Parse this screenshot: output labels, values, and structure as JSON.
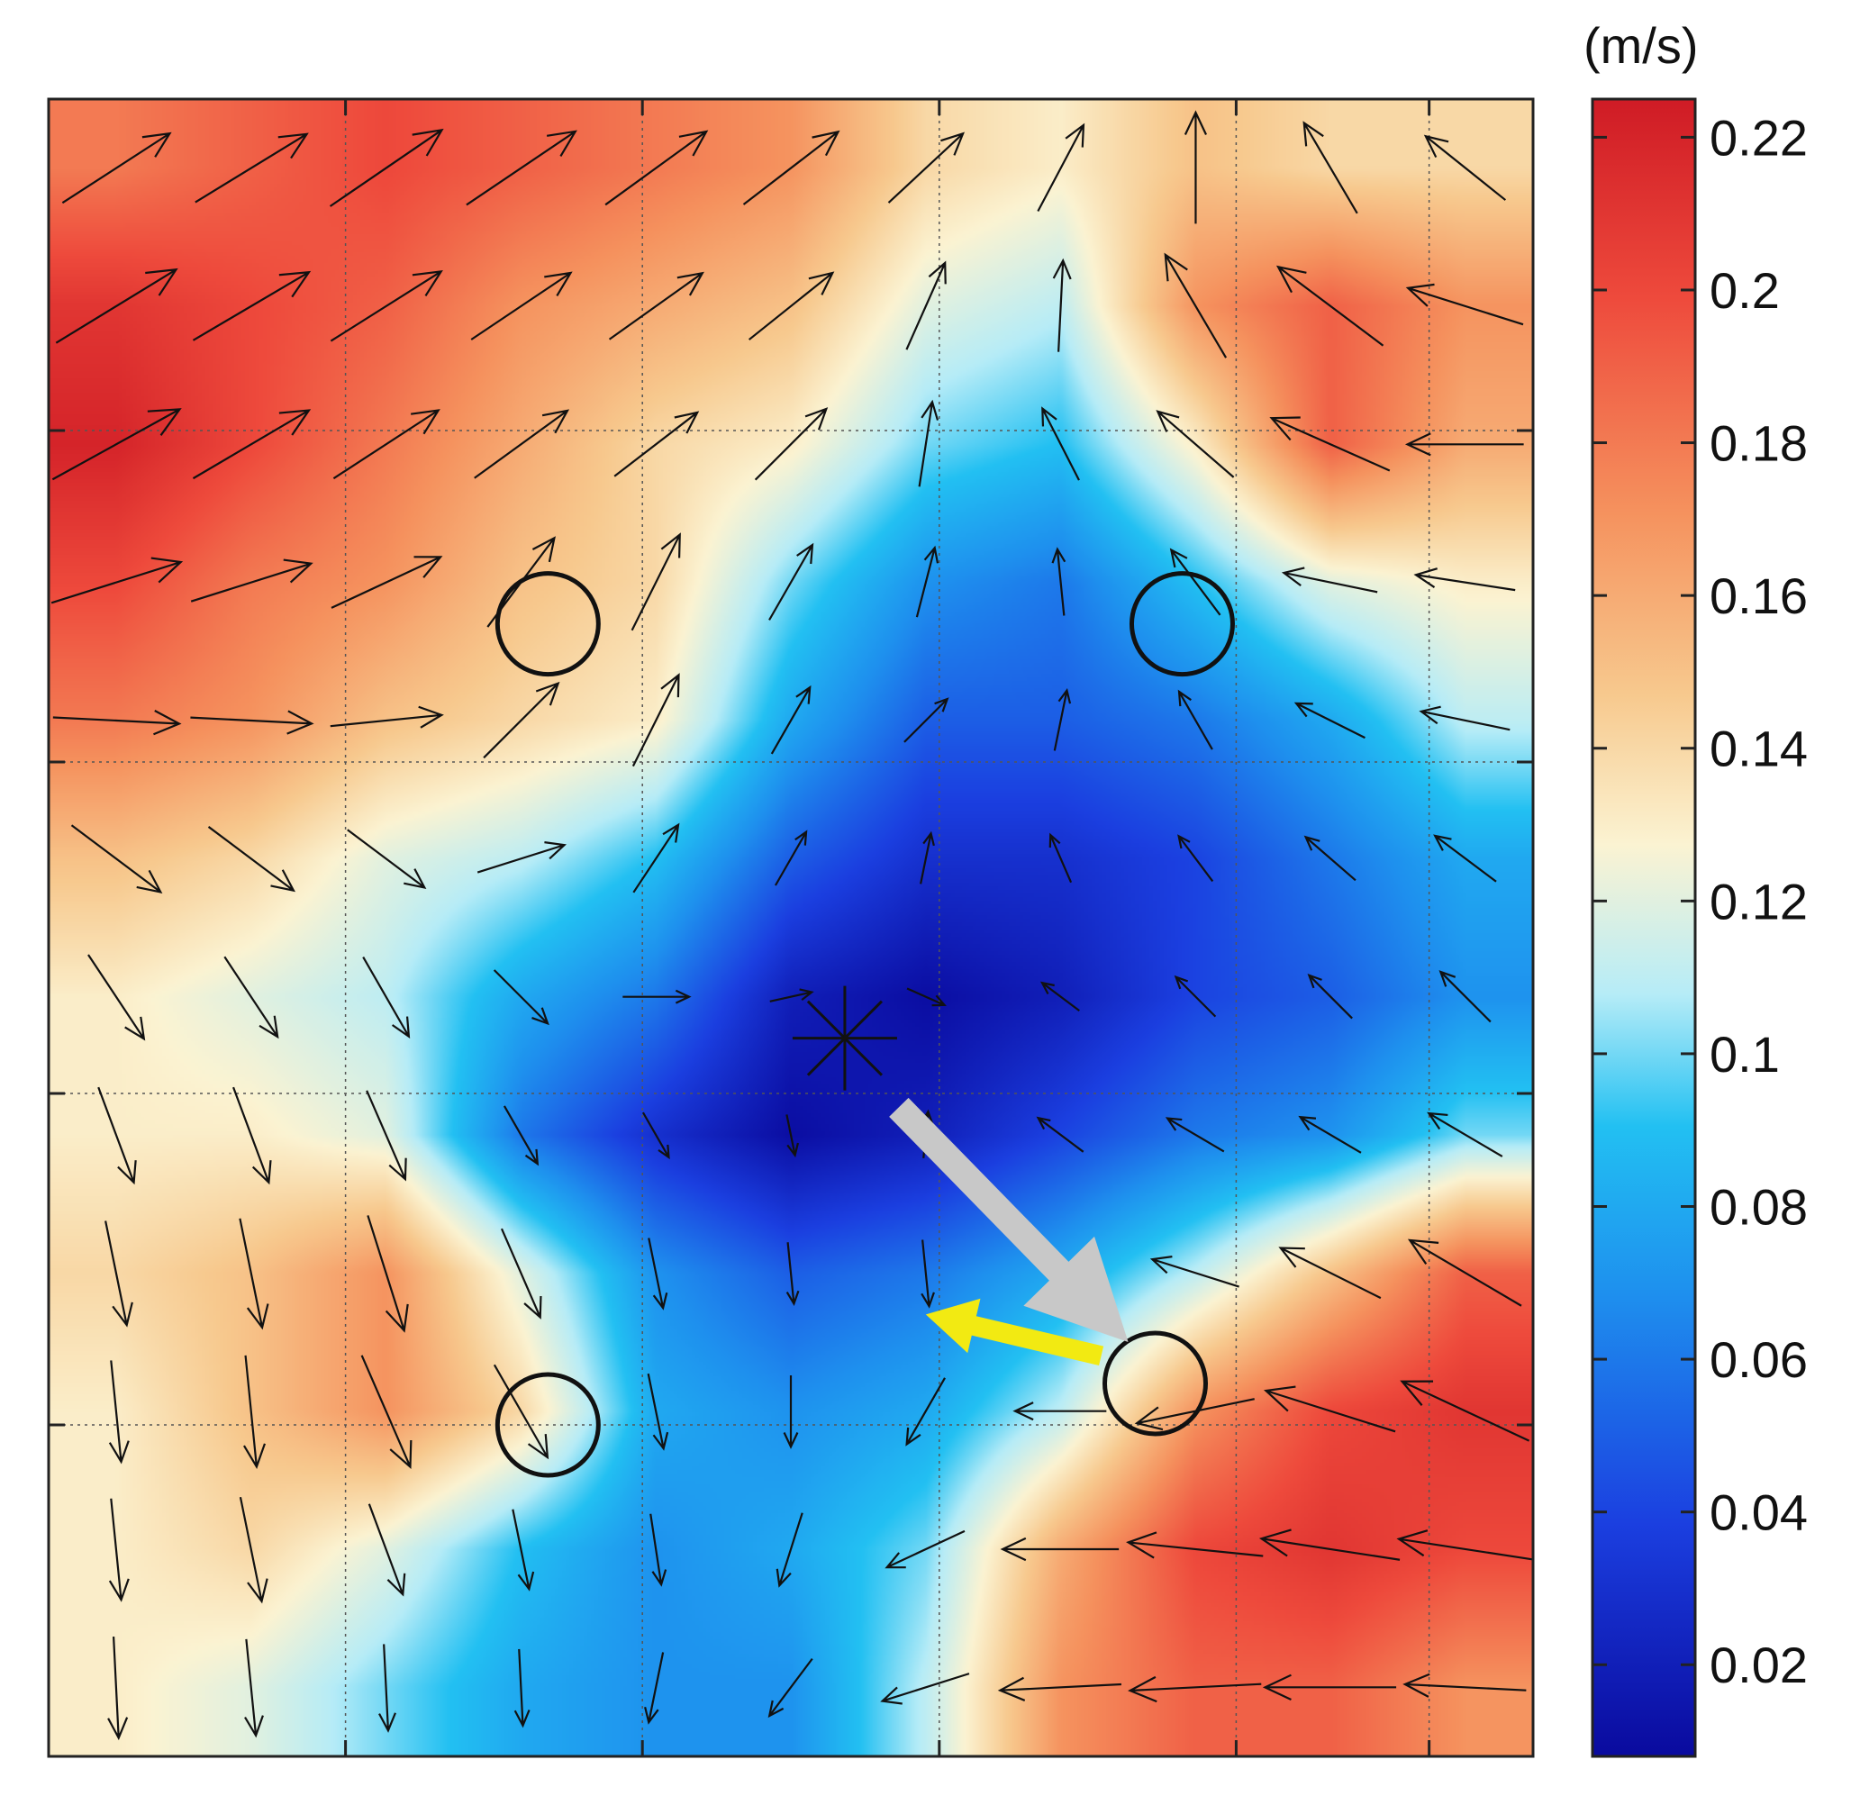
{
  "chart_data": {
    "type": "heatmap",
    "title": "",
    "xlabel": "",
    "ylabel": "",
    "grid": true,
    "grid_style": "dotted",
    "axis_tick_labels": "none",
    "colorbar": {
      "unit": "(m/s)",
      "ticks": [
        "0.22",
        "0.2",
        "0.18",
        "0.16",
        "0.14",
        "0.12",
        "0.1",
        "0.08",
        "0.06",
        "0.04",
        "0.02"
      ],
      "tick_values": [
        0.22,
        0.2,
        0.18,
        0.16,
        0.14,
        0.12,
        0.1,
        0.08,
        0.06,
        0.04,
        0.02
      ],
      "range": [
        0.008,
        0.225
      ],
      "colors": [
        "#0a0a9e",
        "#1b3fe0",
        "#1e90ee",
        "#22c0f2",
        "#b6ecf7",
        "#fbf3d2",
        "#f7c98e",
        "#f5925e",
        "#ee4a3c",
        "#cf1b25"
      ],
      "color_positions": [
        0.0,
        0.14,
        0.28,
        0.38,
        0.46,
        0.55,
        0.64,
        0.75,
        0.88,
        1.0
      ]
    },
    "field_grid_x": [
      0,
      1,
      2,
      3,
      4,
      5,
      6,
      7,
      8,
      9,
      10
    ],
    "field_grid_y": [
      0,
      1,
      2,
      3,
      4,
      5,
      6,
      7,
      8,
      9,
      10,
      11
    ],
    "speed_field": [
      [
        0.18,
        0.19,
        0.2,
        0.19,
        0.18,
        0.17,
        0.14,
        0.13,
        0.15,
        0.14,
        0.14
      ],
      [
        0.21,
        0.2,
        0.19,
        0.17,
        0.16,
        0.15,
        0.12,
        0.11,
        0.17,
        0.19,
        0.17
      ],
      [
        0.22,
        0.2,
        0.18,
        0.16,
        0.14,
        0.13,
        0.1,
        0.09,
        0.13,
        0.19,
        0.16
      ],
      [
        0.2,
        0.18,
        0.17,
        0.15,
        0.14,
        0.1,
        0.07,
        0.06,
        0.09,
        0.12,
        0.13
      ],
      [
        0.18,
        0.17,
        0.15,
        0.14,
        0.13,
        0.08,
        0.05,
        0.05,
        0.06,
        0.08,
        0.11
      ],
      [
        0.15,
        0.14,
        0.12,
        0.11,
        0.09,
        0.05,
        0.03,
        0.03,
        0.04,
        0.06,
        0.08
      ],
      [
        0.13,
        0.12,
        0.11,
        0.08,
        0.06,
        0.02,
        0.01,
        0.02,
        0.04,
        0.05,
        0.07
      ],
      [
        0.13,
        0.13,
        0.12,
        0.06,
        0.03,
        0.01,
        0.02,
        0.04,
        0.06,
        0.07,
        0.1
      ],
      [
        0.14,
        0.15,
        0.17,
        0.12,
        0.07,
        0.05,
        0.06,
        0.08,
        0.11,
        0.15,
        0.19
      ],
      [
        0.13,
        0.15,
        0.17,
        0.14,
        0.08,
        0.07,
        0.08,
        0.11,
        0.17,
        0.2,
        0.21
      ],
      [
        0.13,
        0.14,
        0.12,
        0.09,
        0.07,
        0.08,
        0.1,
        0.16,
        0.2,
        0.21,
        0.2
      ],
      [
        0.13,
        0.12,
        0.1,
        0.08,
        0.07,
        0.07,
        0.11,
        0.17,
        0.19,
        0.19,
        0.17
      ]
    ],
    "vectors": [
      {
        "x": 0,
        "y": 0,
        "u": 0.85,
        "v": 0.55
      },
      {
        "x": 1,
        "y": 0,
        "u": 0.85,
        "v": 0.52
      },
      {
        "x": 2,
        "y": 0,
        "u": 0.82,
        "v": 0.56
      },
      {
        "x": 3,
        "y": 0,
        "u": 0.83,
        "v": 0.56
      },
      {
        "x": 4,
        "y": 0,
        "u": 0.8,
        "v": 0.58
      },
      {
        "x": 5,
        "y": 0,
        "u": 0.78,
        "v": 0.6
      },
      {
        "x": 6,
        "y": 0,
        "u": 0.7,
        "v": 0.65
      },
      {
        "x": 7,
        "y": 0,
        "u": 0.45,
        "v": 0.85
      },
      {
        "x": 8,
        "y": 0,
        "u": 0.0,
        "v": 1.0
      },
      {
        "x": 9,
        "y": 0,
        "u": -0.5,
        "v": 0.85
      },
      {
        "x": 10,
        "y": 0,
        "u": -0.75,
        "v": 0.6
      },
      {
        "x": 0,
        "y": 1,
        "u": 0.85,
        "v": 0.52
      },
      {
        "x": 1,
        "y": 1,
        "u": 0.85,
        "v": 0.5
      },
      {
        "x": 2,
        "y": 1,
        "u": 0.84,
        "v": 0.53
      },
      {
        "x": 3,
        "y": 1,
        "u": 0.82,
        "v": 0.55
      },
      {
        "x": 4,
        "y": 1,
        "u": 0.8,
        "v": 0.57
      },
      {
        "x": 5,
        "y": 1,
        "u": 0.75,
        "v": 0.6
      },
      {
        "x": 6,
        "y": 1,
        "u": 0.4,
        "v": 0.9
      },
      {
        "x": 7,
        "y": 1,
        "u": 0.05,
        "v": 1.0
      },
      {
        "x": 8,
        "y": 1,
        "u": -0.5,
        "v": 0.85
      },
      {
        "x": 9,
        "y": 1,
        "u": -0.8,
        "v": 0.6
      },
      {
        "x": 10,
        "y": 1,
        "u": -0.95,
        "v": 0.3
      },
      {
        "x": 0,
        "y": 2,
        "u": 0.87,
        "v": 0.48
      },
      {
        "x": 1,
        "y": 2,
        "u": 0.85,
        "v": 0.5
      },
      {
        "x": 2,
        "y": 2,
        "u": 0.83,
        "v": 0.54
      },
      {
        "x": 3,
        "y": 2,
        "u": 0.8,
        "v": 0.58
      },
      {
        "x": 4,
        "y": 2,
        "u": 0.78,
        "v": 0.6
      },
      {
        "x": 5,
        "y": 2,
        "u": 0.7,
        "v": 0.7
      },
      {
        "x": 6,
        "y": 2,
        "u": 0.15,
        "v": 0.98
      },
      {
        "x": 7,
        "y": 2,
        "u": -0.45,
        "v": 0.88
      },
      {
        "x": 8,
        "y": 2,
        "u": -0.75,
        "v": 0.65
      },
      {
        "x": 9,
        "y": 2,
        "u": -0.9,
        "v": 0.4
      },
      {
        "x": 10,
        "y": 2,
        "u": -1.0,
        "v": 0.0
      },
      {
        "x": 0,
        "y": 3,
        "u": 0.95,
        "v": 0.3
      },
      {
        "x": 1,
        "y": 3,
        "u": 0.95,
        "v": 0.3
      },
      {
        "x": 2,
        "y": 3,
        "u": 0.9,
        "v": 0.42
      },
      {
        "x": 3,
        "y": 3,
        "u": 0.6,
        "v": 0.8
      },
      {
        "x": 4,
        "y": 3,
        "u": 0.45,
        "v": 0.9
      },
      {
        "x": 5,
        "y": 3,
        "u": 0.5,
        "v": 0.87
      },
      {
        "x": 6,
        "y": 3,
        "u": 0.25,
        "v": 0.97
      },
      {
        "x": 7,
        "y": 3,
        "u": -0.1,
        "v": 1.0
      },
      {
        "x": 8,
        "y": 3,
        "u": -0.6,
        "v": 0.8
      },
      {
        "x": 9,
        "y": 3,
        "u": -0.97,
        "v": 0.2
      },
      {
        "x": 10,
        "y": 3,
        "u": -0.98,
        "v": 0.15
      },
      {
        "x": 0,
        "y": 4,
        "u": 1.0,
        "v": -0.05
      },
      {
        "x": 1,
        "y": 4,
        "u": 1.0,
        "v": -0.05
      },
      {
        "x": 2,
        "y": 4,
        "u": 1.0,
        "v": 0.1
      },
      {
        "x": 3,
        "y": 4,
        "u": 0.7,
        "v": 0.7
      },
      {
        "x": 4,
        "y": 4,
        "u": 0.45,
        "v": 0.9
      },
      {
        "x": 5,
        "y": 4,
        "u": 0.5,
        "v": 0.87
      },
      {
        "x": 6,
        "y": 4,
        "u": 0.7,
        "v": 0.7
      },
      {
        "x": 7,
        "y": 4,
        "u": 0.2,
        "v": 0.98
      },
      {
        "x": 8,
        "y": 4,
        "u": -0.5,
        "v": 0.87
      },
      {
        "x": 9,
        "y": 4,
        "u": -0.9,
        "v": 0.45
      },
      {
        "x": 10,
        "y": 4,
        "u": -0.97,
        "v": 0.2
      },
      {
        "x": 0,
        "y": 5,
        "u": 0.8,
        "v": -0.6
      },
      {
        "x": 1,
        "y": 5,
        "u": 0.8,
        "v": -0.6
      },
      {
        "x": 2,
        "y": 5,
        "u": 0.8,
        "v": -0.6
      },
      {
        "x": 3,
        "y": 5,
        "u": 0.95,
        "v": 0.3
      },
      {
        "x": 4,
        "y": 5,
        "u": 0.55,
        "v": 0.83
      },
      {
        "x": 5,
        "y": 5,
        "u": 0.5,
        "v": 0.87
      },
      {
        "x": 6,
        "y": 5,
        "u": 0.2,
        "v": 0.98
      },
      {
        "x": 7,
        "y": 5,
        "u": -0.4,
        "v": 0.92
      },
      {
        "x": 8,
        "y": 5,
        "u": -0.6,
        "v": 0.8
      },
      {
        "x": 9,
        "y": 5,
        "u": -0.75,
        "v": 0.65
      },
      {
        "x": 10,
        "y": 5,
        "u": -0.8,
        "v": 0.6
      },
      {
        "x": 0,
        "y": 6,
        "u": 0.55,
        "v": -0.83
      },
      {
        "x": 1,
        "y": 6,
        "u": 0.55,
        "v": -0.83
      },
      {
        "x": 2,
        "y": 6,
        "u": 0.5,
        "v": -0.87
      },
      {
        "x": 3,
        "y": 6,
        "u": 0.7,
        "v": -0.7
      },
      {
        "x": 4,
        "y": 6,
        "u": 1.0,
        "v": 0.0
      },
      {
        "x": 5,
        "y": 6,
        "u": 0.9,
        "v": 0.2
      },
      {
        "x": 6,
        "y": 6,
        "u": 0.9,
        "v": -0.4
      },
      {
        "x": 7,
        "y": 6,
        "u": -0.8,
        "v": 0.6
      },
      {
        "x": 8,
        "y": 6,
        "u": -0.7,
        "v": 0.7
      },
      {
        "x": 9,
        "y": 6,
        "u": -0.7,
        "v": 0.7
      },
      {
        "x": 10,
        "y": 6,
        "u": -0.7,
        "v": 0.7
      },
      {
        "x": 0,
        "y": 7,
        "u": 0.35,
        "v": -0.94
      },
      {
        "x": 1,
        "y": 7,
        "u": 0.35,
        "v": -0.94
      },
      {
        "x": 2,
        "y": 7,
        "u": 0.4,
        "v": -0.92
      },
      {
        "x": 3,
        "y": 7,
        "u": 0.5,
        "v": -0.87
      },
      {
        "x": 4,
        "y": 7,
        "u": 0.5,
        "v": -0.87
      },
      {
        "x": 5,
        "y": 7,
        "u": 0.2,
        "v": -0.98
      },
      {
        "x": 6,
        "y": 7,
        "u": 0.1,
        "v": 1.0
      },
      {
        "x": 7,
        "y": 7,
        "u": -0.8,
        "v": 0.6
      },
      {
        "x": 8,
        "y": 7,
        "u": -0.85,
        "v": 0.5
      },
      {
        "x": 9,
        "y": 7,
        "u": -0.85,
        "v": 0.5
      },
      {
        "x": 10,
        "y": 7,
        "u": -0.85,
        "v": 0.5
      },
      {
        "x": 0,
        "y": 8,
        "u": 0.2,
        "v": -0.98
      },
      {
        "x": 1,
        "y": 8,
        "u": 0.2,
        "v": -0.98
      },
      {
        "x": 2,
        "y": 8,
        "u": 0.3,
        "v": -0.95
      },
      {
        "x": 3,
        "y": 8,
        "u": 0.4,
        "v": -0.92
      },
      {
        "x": 4,
        "y": 8,
        "u": 0.2,
        "v": -0.98
      },
      {
        "x": 5,
        "y": 8,
        "u": 0.1,
        "v": -1.0
      },
      {
        "x": 6,
        "y": 8,
        "u": 0.1,
        "v": -1.0
      },
      {
        "x": 7,
        "y": 8,
        "u": -0.8,
        "v": 0.6
      },
      {
        "x": 8,
        "y": 8,
        "u": -0.95,
        "v": 0.3
      },
      {
        "x": 9,
        "y": 8,
        "u": -0.9,
        "v": 0.45
      },
      {
        "x": 10,
        "y": 8,
        "u": -0.85,
        "v": 0.5
      },
      {
        "x": 0,
        "y": 9,
        "u": 0.1,
        "v": -1.0
      },
      {
        "x": 1,
        "y": 9,
        "u": 0.1,
        "v": -1.0
      },
      {
        "x": 2,
        "y": 9,
        "u": 0.4,
        "v": -0.92
      },
      {
        "x": 3,
        "y": 9,
        "u": 0.5,
        "v": -0.87
      },
      {
        "x": 4,
        "y": 9,
        "u": 0.2,
        "v": -0.98
      },
      {
        "x": 5,
        "y": 9,
        "u": 0.0,
        "v": -1.0
      },
      {
        "x": 6,
        "y": 9,
        "u": -0.5,
        "v": -0.87
      },
      {
        "x": 7,
        "y": 9,
        "u": -1.0,
        "v": 0.0
      },
      {
        "x": 8,
        "y": 9,
        "u": -0.97,
        "v": -0.2
      },
      {
        "x": 9,
        "y": 9,
        "u": -0.95,
        "v": 0.3
      },
      {
        "x": 10,
        "y": 9,
        "u": -0.9,
        "v": 0.42
      },
      {
        "x": 0,
        "y": 10,
        "u": 0.1,
        "v": -1.0
      },
      {
        "x": 1,
        "y": 10,
        "u": 0.2,
        "v": -0.98
      },
      {
        "x": 2,
        "y": 10,
        "u": 0.35,
        "v": -0.94
      },
      {
        "x": 3,
        "y": 10,
        "u": 0.2,
        "v": -0.98
      },
      {
        "x": 4,
        "y": 10,
        "u": 0.15,
        "v": -0.99
      },
      {
        "x": 5,
        "y": 10,
        "u": -0.3,
        "v": -0.95
      },
      {
        "x": 6,
        "y": 10,
        "u": -0.9,
        "v": -0.42
      },
      {
        "x": 7,
        "y": 10,
        "u": -1.0,
        "v": 0.0
      },
      {
        "x": 8,
        "y": 10,
        "u": -0.99,
        "v": 0.1
      },
      {
        "x": 9,
        "y": 10,
        "u": -0.98,
        "v": 0.15
      },
      {
        "x": 10,
        "y": 10,
        "u": -0.98,
        "v": 0.15
      },
      {
        "x": 0,
        "y": 11,
        "u": 0.05,
        "v": -1.0
      },
      {
        "x": 1,
        "y": 11,
        "u": 0.1,
        "v": -1.0
      },
      {
        "x": 2,
        "y": 11,
        "u": 0.05,
        "v": -1.0
      },
      {
        "x": 3,
        "y": 11,
        "u": 0.05,
        "v": -1.0
      },
      {
        "x": 4,
        "y": 11,
        "u": -0.2,
        "v": -0.98
      },
      {
        "x": 5,
        "y": 11,
        "u": -0.6,
        "v": -0.8
      },
      {
        "x": 6,
        "y": 11,
        "u": -0.95,
        "v": -0.3
      },
      {
        "x": 7,
        "y": 11,
        "u": -1.0,
        "v": -0.05
      },
      {
        "x": 8,
        "y": 11,
        "u": -1.0,
        "v": -0.05
      },
      {
        "x": 9,
        "y": 11,
        "u": -1.0,
        "v": 0.0
      },
      {
        "x": 10,
        "y": 11,
        "u": -1.0,
        "v": 0.05
      }
    ],
    "circles": [
      {
        "x": 3.2,
        "y": 3.3
      },
      {
        "x": 7.9,
        "y": 3.3
      },
      {
        "x": 3.2,
        "y": 9.1
      },
      {
        "x": 7.7,
        "y": 8.8
      }
    ],
    "star_marker": {
      "x": 5.4,
      "y": 6.3
    },
    "gray_arrow": {
      "from": [
        5.8,
        6.8
      ],
      "to": [
        7.5,
        8.5
      ],
      "color": "#c8c8c8"
    },
    "yellow_arrow": {
      "from": [
        7.3,
        8.6
      ],
      "to": [
        6.0,
        8.3
      ],
      "color": "#f2ea12"
    }
  }
}
